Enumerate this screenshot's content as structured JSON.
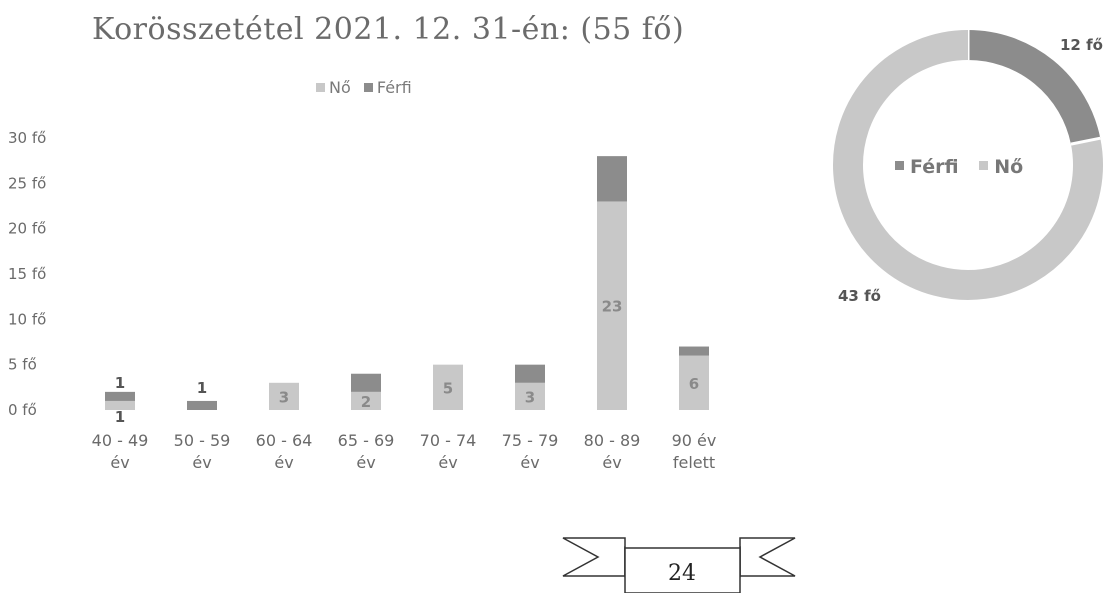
{
  "title": "Korösszetétel 2021. 12. 31-én:  (55 fő)",
  "legend": {
    "items": [
      {
        "label": "Nő"
      },
      {
        "label": "Férfi"
      }
    ]
  },
  "colors": {
    "no": "#c8c8c8",
    "ferfi": "#8c8c8c"
  },
  "chart_data": [
    {
      "type": "bar",
      "stacked": true,
      "categories": [
        [
          "40 - 49",
          "év"
        ],
        [
          "50 - 59",
          "év"
        ],
        [
          "60 - 64",
          "év"
        ],
        [
          "65 - 69",
          "év"
        ],
        [
          "70 - 74",
          "év"
        ],
        [
          "75 - 79",
          "év"
        ],
        [
          "80 - 89",
          "év"
        ],
        [
          "90 év",
          "felett"
        ]
      ],
      "series": [
        {
          "name": "Nő",
          "values": [
            1,
            0,
            3,
            2,
            5,
            3,
            23,
            6
          ],
          "labels": [
            "1",
            "",
            "3",
            "2",
            "5",
            "3",
            "23",
            "6"
          ]
        },
        {
          "name": "Férfi",
          "values": [
            1,
            1,
            0,
            2,
            0,
            2,
            5,
            1
          ],
          "labels": [
            "1",
            "1",
            "",
            "",
            "",
            "",
            "",
            ""
          ]
        }
      ],
      "yticks": [
        "0 fő",
        "5 fő",
        "10 fő",
        "15 fő",
        "20 fő",
        "25 fő",
        "30 fő"
      ],
      "ylim": [
        0,
        30
      ],
      "legend": "top",
      "grid": false
    },
    {
      "type": "pie",
      "donut": true,
      "slices": [
        {
          "name": "Férfi",
          "value": 12,
          "label": "12 fő"
        },
        {
          "name": "Nő",
          "value": 43,
          "label": "43 fő"
        }
      ],
      "legend": "center"
    }
  ],
  "page_number": "24"
}
